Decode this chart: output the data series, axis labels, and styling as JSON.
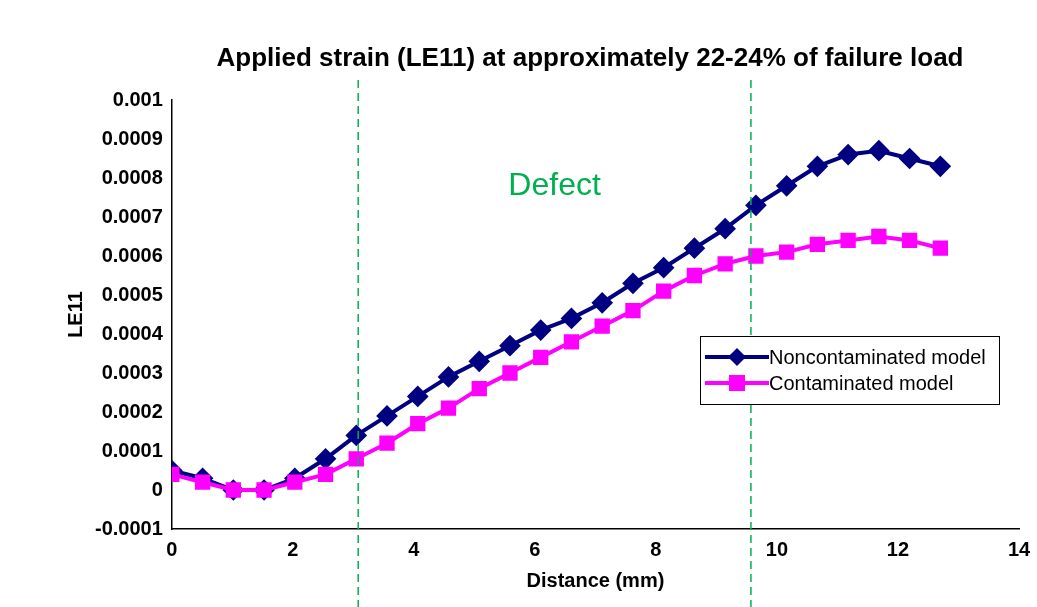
{
  "chart_data": {
    "type": "line",
    "title": "Applied strain (LE11) at approximately 22-24% of failure load",
    "xlabel": "Distance (mm)",
    "ylabel": "LE11",
    "x": [
      0,
      0.508,
      1.016,
      1.524,
      2.032,
      2.54,
      3.048,
      3.556,
      4.064,
      4.572,
      5.08,
      5.588,
      6.096,
      6.604,
      7.112,
      7.62,
      8.128,
      8.636,
      9.144,
      9.652,
      10.16,
      10.668,
      11.176,
      11.684,
      12.192,
      12.7
    ],
    "series": [
      {
        "name": "Noncontaminated model",
        "color": "#000080",
        "marker": "diamond",
        "values": [
          5e-05,
          3e-05,
          0,
          0,
          3e-05,
          8e-05,
          0.00014,
          0.00019,
          0.00024,
          0.00029,
          0.00033,
          0.00037,
          0.00041,
          0.00044,
          0.00048,
          0.00053,
          0.00057,
          0.00062,
          0.00067,
          0.00073,
          0.00078,
          0.00083,
          0.00086,
          0.00087,
          0.00085,
          0.00083
        ]
      },
      {
        "name": "Contaminated model",
        "color": "#ff00ff",
        "marker": "square",
        "values": [
          4e-05,
          2e-05,
          0,
          0,
          2e-05,
          4e-05,
          8e-05,
          0.00012,
          0.00017,
          0.00021,
          0.00026,
          0.0003,
          0.00034,
          0.00038,
          0.00042,
          0.00046,
          0.00051,
          0.00055,
          0.00058,
          0.0006,
          0.00061,
          0.00063,
          0.00064,
          0.00065,
          0.00064,
          0.00062
        ]
      }
    ],
    "xlim": [
      0,
      14
    ],
    "xticks": [
      0,
      2,
      4,
      6,
      8,
      10,
      12,
      14
    ],
    "ylim": [
      -0.0001,
      0.001
    ],
    "yticks": [
      -0.0001,
      0,
      0.0001,
      0.0002,
      0.0003,
      0.0004,
      0.0005,
      0.0006,
      0.0007,
      0.0008,
      0.0009,
      0.001
    ],
    "ref_lines": [
      {
        "axis": "x",
        "value": 3.08,
        "color": "#00b050",
        "line_style": "dashed"
      },
      {
        "axis": "x",
        "value": 9.57,
        "color": "#00b050",
        "line_style": "dashed"
      }
    ],
    "annotations": [
      "Defect"
    ],
    "grid": false,
    "legend": "right",
    "line_style": "solid"
  }
}
